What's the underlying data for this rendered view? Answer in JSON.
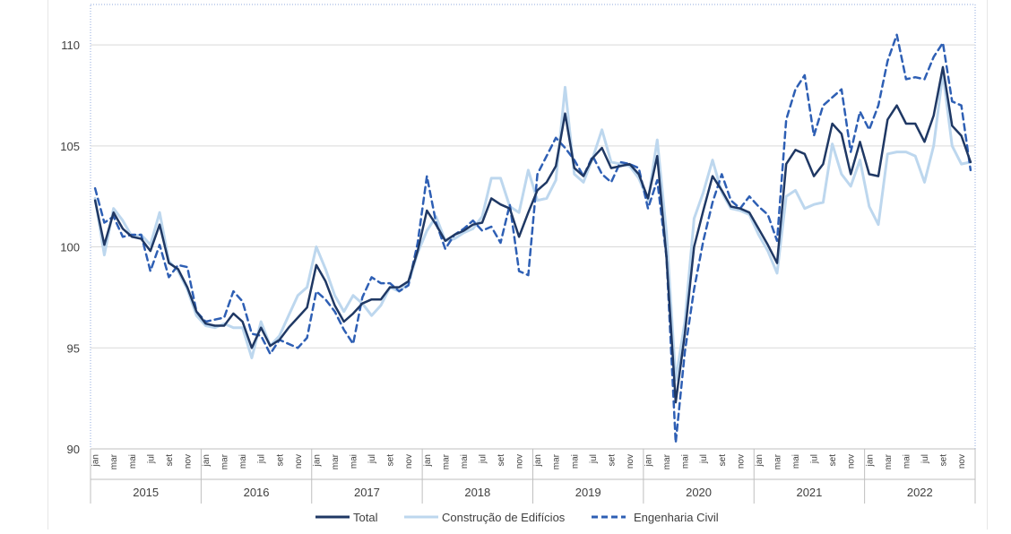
{
  "chart_data": {
    "type": "line",
    "title": "",
    "xlabel": "",
    "ylabel": "",
    "ylim": [
      90,
      112
    ],
    "yticks": [
      90,
      95,
      100,
      105,
      110
    ],
    "grid": "horizontal",
    "legend_position": "bottom",
    "month_tick_labels": [
      "jan",
      "mar",
      "mai",
      "jul",
      "set",
      "nov"
    ],
    "years": [
      "2015",
      "2016",
      "2017",
      "2018",
      "2019",
      "2020",
      "2021",
      "2022"
    ],
    "colors": {
      "total": "#1f3864",
      "edificios": "#bdd7ee",
      "engenharia": "#2e5fb4",
      "grid": "#d9d9d9",
      "plot_border": "#8faadc"
    },
    "series": [
      {
        "name": "Total",
        "style": "solid",
        "values": [
          102.3,
          100.1,
          101.7,
          100.9,
          100.5,
          100.4,
          99.8,
          101.1,
          99.2,
          98.9,
          98.0,
          96.8,
          96.2,
          96.1,
          96.1,
          96.7,
          96.3,
          95.0,
          96.0,
          95.1,
          95.4,
          96.0,
          96.5,
          97.0,
          99.1,
          98.3,
          97.1,
          96.3,
          96.7,
          97.2,
          97.4,
          97.4,
          98.0,
          98.0,
          98.3,
          99.8,
          101.8,
          101.1,
          100.3,
          100.6,
          100.8,
          101.1,
          101.2,
          102.4,
          102.1,
          101.9,
          100.5,
          101.7,
          102.8,
          103.2,
          104.0,
          106.6,
          103.9,
          103.5,
          104.4,
          104.9,
          103.9,
          104.0,
          104.1,
          103.6,
          102.4,
          104.5,
          99.5,
          92.3,
          95.7,
          100.0,
          101.8,
          103.5,
          102.8,
          102.0,
          101.9,
          101.7,
          100.9,
          100.1,
          99.2,
          104.1,
          104.8,
          104.6,
          103.5,
          104.1,
          106.1,
          105.6,
          103.6,
          105.2,
          103.6,
          103.5,
          106.3,
          107.0,
          106.1,
          106.1,
          105.2,
          106.5,
          108.9,
          106.0,
          105.5,
          104.2
        ]
      },
      {
        "name": "Construção de Edifícios",
        "style": "solid",
        "values": [
          102.4,
          99.6,
          101.9,
          101.3,
          100.5,
          100.6,
          100.1,
          101.7,
          99.3,
          98.8,
          97.9,
          96.6,
          96.1,
          96.0,
          96.2,
          96.0,
          96.0,
          94.5,
          96.3,
          95.1,
          95.6,
          96.6,
          97.6,
          98.0,
          100.0,
          98.9,
          97.6,
          96.8,
          97.6,
          97.2,
          96.6,
          97.1,
          98.0,
          97.8,
          98.2,
          99.7,
          100.8,
          101.5,
          100.3,
          100.4,
          100.7,
          100.9,
          101.5,
          103.4,
          103.4,
          102.0,
          101.7,
          103.8,
          102.3,
          102.4,
          103.3,
          107.9,
          103.6,
          103.2,
          104.4,
          105.8,
          104.2,
          104.1,
          104.0,
          103.4,
          102.3,
          105.3,
          100.7,
          93.4,
          96.3,
          101.4,
          102.7,
          104.3,
          102.7,
          101.9,
          101.8,
          101.6,
          100.6,
          99.8,
          98.7,
          102.5,
          102.8,
          101.9,
          102.1,
          102.2,
          105.1,
          103.6,
          103.0,
          104.3,
          102.0,
          101.1,
          104.6,
          104.7,
          104.7,
          104.5,
          103.2,
          105.0,
          108.6,
          105.0,
          104.1,
          104.2
        ]
      },
      {
        "name": "Engenharia Civil",
        "style": "dashed",
        "values": [
          102.9,
          101.2,
          101.5,
          100.5,
          100.6,
          100.6,
          98.8,
          100.1,
          98.5,
          99.1,
          99.0,
          96.8,
          96.3,
          96.4,
          96.5,
          97.8,
          97.3,
          95.7,
          95.6,
          94.7,
          95.4,
          95.2,
          95.0,
          95.5,
          97.8,
          97.4,
          96.8,
          95.9,
          95.2,
          97.5,
          98.5,
          98.2,
          98.2,
          97.8,
          98.1,
          100.2,
          103.5,
          101.2,
          99.9,
          100.6,
          100.9,
          101.3,
          100.8,
          101.0,
          100.2,
          102.1,
          98.8,
          98.6,
          103.6,
          104.5,
          105.4,
          104.9,
          104.3,
          103.5,
          104.5,
          103.6,
          103.2,
          104.2,
          104.1,
          103.9,
          101.9,
          103.3,
          99.5,
          90.3,
          94.8,
          97.9,
          100.3,
          102.2,
          103.6,
          102.3,
          101.9,
          102.5,
          102.0,
          101.6,
          100.3,
          106.3,
          107.8,
          108.5,
          105.5,
          107.0,
          107.4,
          107.8,
          104.7,
          106.7,
          105.8,
          107.0,
          109.2,
          110.5,
          108.3,
          108.4,
          108.3,
          109.4,
          110.1,
          107.2,
          107.0,
          103.8
        ]
      }
    ]
  }
}
